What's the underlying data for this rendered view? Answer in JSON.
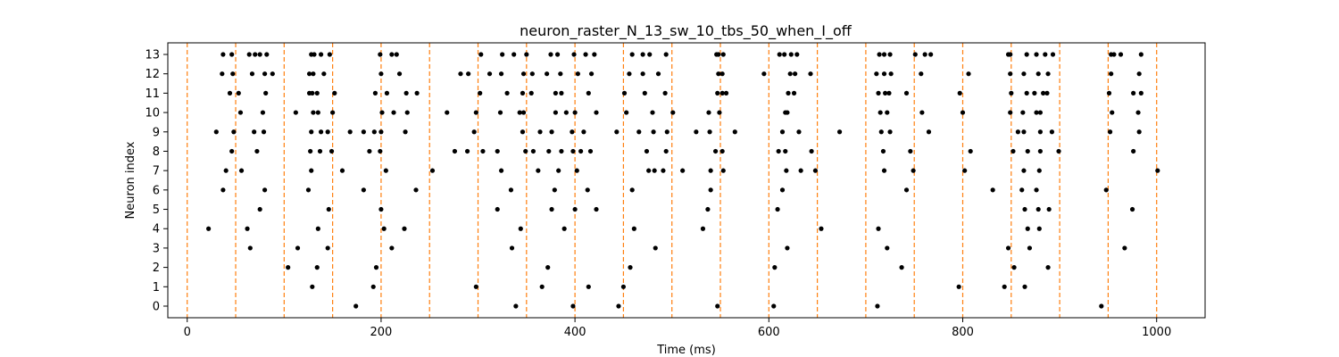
{
  "chart_data": {
    "type": "scatter",
    "title": "neuron_raster_N_13_sw_10_tbs_50_when_I_off",
    "xlabel": "Time (ms)",
    "ylabel": "Neuron index",
    "xlim": [
      -20,
      1050
    ],
    "ylim": [
      -0.6,
      13.6
    ],
    "x_ticks": [
      0,
      200,
      400,
      600,
      800,
      1000
    ],
    "y_ticks": [
      0,
      1,
      2,
      3,
      4,
      5,
      6,
      7,
      8,
      9,
      10,
      11,
      12,
      13
    ],
    "grid": false,
    "legend": "none",
    "marker_color": "#000000",
    "reference_line_color": "#ff7f0e",
    "vertical_reference_lines": [
      0,
      50,
      100,
      150,
      200,
      250,
      300,
      350,
      400,
      450,
      500,
      550,
      600,
      650,
      700,
      750,
      800,
      850,
      900,
      950,
      1000
    ],
    "spikes": [
      {
        "neuron": 13,
        "times": [
          37,
          46,
          64,
          70,
          75,
          82,
          128,
          131,
          138,
          147,
          199,
          211,
          216,
          303,
          325,
          337,
          350,
          375,
          382,
          399,
          411,
          420,
          459,
          470,
          477,
          494,
          546,
          548,
          553,
          611,
          616,
          623,
          629,
          714,
          719,
          725,
          751,
          761,
          767,
          847,
          849,
          866,
          876,
          885,
          893,
          953,
          956,
          963,
          984
        ]
      },
      {
        "neuron": 12,
        "times": [
          36,
          47,
          67,
          80,
          88,
          126,
          130,
          141,
          200,
          219,
          282,
          290,
          312,
          324,
          347,
          356,
          371,
          385,
          403,
          417,
          456,
          470,
          486,
          548,
          552,
          595,
          622,
          627,
          643,
          711,
          719,
          726,
          757,
          806,
          849,
          863,
          878,
          888,
          953,
          982
        ]
      },
      {
        "neuron": 11,
        "times": [
          44,
          53,
          81,
          126,
          129,
          134,
          152,
          194,
          206,
          226,
          237,
          302,
          330,
          346,
          355,
          380,
          386,
          414,
          451,
          472,
          493,
          547,
          552,
          556,
          620,
          626,
          713,
          720,
          724,
          742,
          797,
          850,
          866,
          874,
          883,
          887,
          951,
          976,
          984
        ]
      },
      {
        "neuron": 10,
        "times": [
          55,
          78,
          112,
          130,
          135,
          150,
          201,
          213,
          227,
          268,
          298,
          323,
          343,
          347,
          380,
          391,
          400,
          422,
          453,
          480,
          501,
          538,
          549,
          617,
          619,
          715,
          722,
          758,
          800,
          849,
          862,
          876,
          880,
          954,
          981
        ]
      },
      {
        "neuron": 9,
        "times": [
          30,
          48,
          69,
          79,
          128,
          138,
          145,
          168,
          182,
          193,
          200,
          225,
          296,
          346,
          364,
          376,
          397,
          409,
          443,
          466,
          481,
          495,
          525,
          539,
          565,
          614,
          631,
          673,
          716,
          725,
          765,
          857,
          863,
          880,
          892,
          952,
          982
        ]
      },
      {
        "neuron": 8,
        "times": [
          46,
          72,
          127,
          137,
          149,
          188,
          199,
          276,
          289,
          305,
          320,
          349,
          357,
          373,
          386,
          398,
          406,
          416,
          474,
          494,
          545,
          552,
          610,
          617,
          644,
          718,
          746,
          808,
          852,
          867,
          880,
          899,
          976
        ]
      },
      {
        "neuron": 7,
        "times": [
          40,
          56,
          128,
          160,
          205,
          253,
          324,
          362,
          383,
          402,
          476,
          482,
          491,
          511,
          540,
          553,
          618,
          633,
          648,
          719,
          749,
          802,
          863,
          879,
          1001
        ]
      },
      {
        "neuron": 6,
        "times": [
          37,
          80,
          125,
          182,
          236,
          334,
          379,
          413,
          459,
          540,
          614,
          742,
          831,
          861,
          876,
          948
        ]
      },
      {
        "neuron": 5,
        "times": [
          75,
          146,
          200,
          320,
          376,
          400,
          422,
          537,
          609,
          864,
          878,
          889,
          975
        ]
      },
      {
        "neuron": 4,
        "times": [
          22,
          62,
          135,
          203,
          224,
          344,
          389,
          461,
          532,
          654,
          713,
          867,
          879
        ]
      },
      {
        "neuron": 3,
        "times": [
          65,
          114,
          145,
          211,
          335,
          483,
          619,
          722,
          847,
          869,
          967
        ]
      },
      {
        "neuron": 2,
        "times": [
          104,
          134,
          195,
          372,
          457,
          606,
          737,
          853,
          888
        ]
      },
      {
        "neuron": 1,
        "times": [
          129,
          192,
          298,
          366,
          414,
          450,
          796,
          843,
          864
        ]
      },
      {
        "neuron": 0,
        "times": [
          174,
          339,
          398,
          445,
          547,
          605,
          712,
          943
        ]
      }
    ]
  }
}
